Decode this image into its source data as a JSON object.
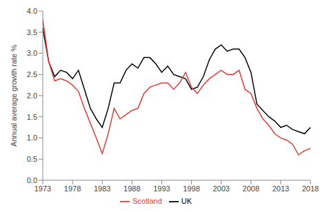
{
  "chart_data": {
    "type": "line",
    "y_label": "Annual average growth rate %",
    "x": [
      1973,
      1974,
      1975,
      1976,
      1977,
      1978,
      1979,
      1980,
      1981,
      1982,
      1983,
      1984,
      1985,
      1986,
      1987,
      1988,
      1989,
      1990,
      1991,
      1992,
      1993,
      1994,
      1995,
      1996,
      1997,
      1998,
      1999,
      2000,
      2001,
      2002,
      2003,
      2004,
      2005,
      2006,
      2007,
      2008,
      2009,
      2010,
      2011,
      2012,
      2013,
      2014,
      2015,
      2016,
      2017,
      2018
    ],
    "series": [
      {
        "name": "UK",
        "color": "#000000",
        "values": [
          3.6,
          2.8,
          2.45,
          2.6,
          2.55,
          2.4,
          2.6,
          2.15,
          1.7,
          1.45,
          1.25,
          1.7,
          2.3,
          2.3,
          2.6,
          2.75,
          2.65,
          2.9,
          2.9,
          2.75,
          2.55,
          2.7,
          2.5,
          2.45,
          2.4,
          2.15,
          2.2,
          2.45,
          2.85,
          3.1,
          3.2,
          3.05,
          3.1,
          3.1,
          2.9,
          2.55,
          1.8,
          1.65,
          1.5,
          1.4,
          1.25,
          1.3,
          1.2,
          1.15,
          1.1,
          1.25
        ]
      },
      {
        "name": "Scotland",
        "color": "#e53935",
        "values": [
          3.8,
          2.8,
          2.35,
          2.4,
          2.35,
          2.25,
          2.1,
          1.7,
          1.35,
          1.0,
          0.63,
          1.1,
          1.7,
          1.45,
          1.55,
          1.65,
          1.7,
          2.05,
          2.2,
          2.25,
          2.3,
          2.3,
          2.15,
          2.3,
          2.55,
          2.2,
          2.05,
          2.25,
          2.4,
          2.5,
          2.6,
          2.5,
          2.5,
          2.6,
          2.15,
          2.05,
          1.7,
          1.45,
          1.3,
          1.1,
          1.0,
          0.95,
          0.85,
          0.6,
          0.7,
          0.75
        ]
      }
    ],
    "xlim": [
      1973,
      2018
    ],
    "xticks": [
      1973,
      1978,
      1983,
      1988,
      1993,
      1998,
      2003,
      2008,
      2013,
      2018
    ],
    "ylim": [
      0,
      4
    ],
    "yticks": [
      {
        "value": 0,
        "label": "0.0"
      },
      0.5,
      {
        "value": 1,
        "label": "1.0"
      },
      1.5,
      {
        "value": 2,
        "label": "2.0"
      },
      2.5,
      {
        "value": 3,
        "label": "3.0"
      },
      3.5,
      {
        "value": 4,
        "label": "4.0"
      }
    ],
    "grid": false,
    "legend": "bottom"
  }
}
